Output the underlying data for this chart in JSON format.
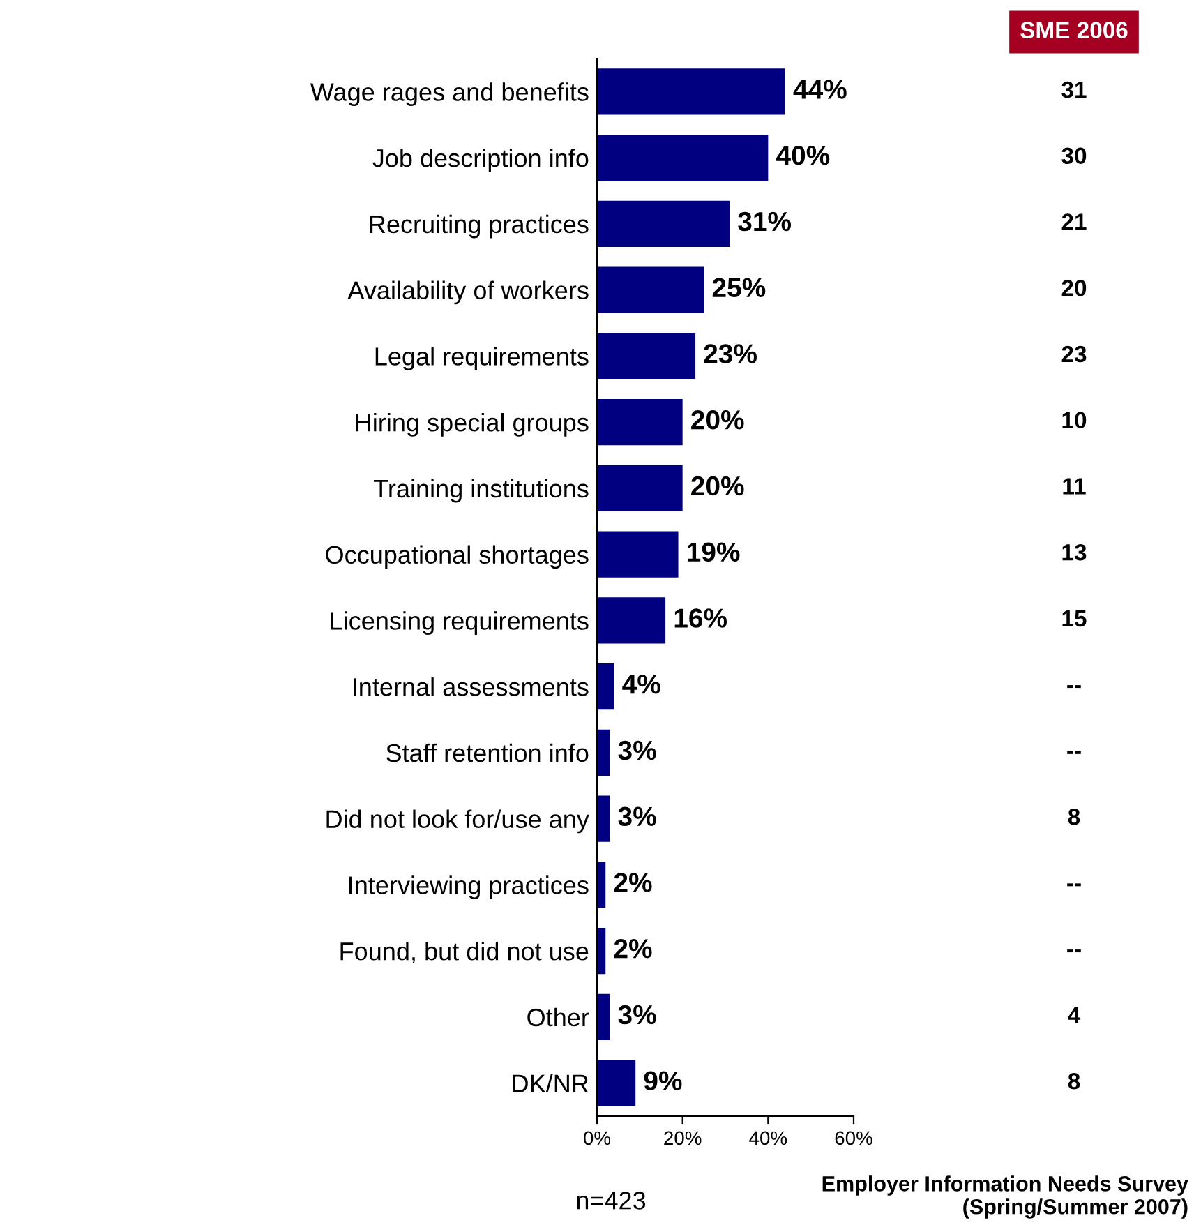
{
  "chart_data": {
    "type": "bar",
    "orientation": "horizontal",
    "categories": [
      "Wage rages and benefits",
      "Job description info",
      "Recruiting practices",
      "Availability of workers",
      "Legal requirements",
      "Hiring special groups",
      "Training institutions",
      "Occupational shortages",
      "Licensing requirements",
      "Internal assessments",
      "Staff retention info",
      "Did not look for/use any",
      "Interviewing practices",
      "Found, but did not use",
      "Other",
      "DK/NR"
    ],
    "values": [
      44,
      40,
      31,
      25,
      23,
      20,
      20,
      19,
      16,
      4,
      3,
      3,
      2,
      2,
      3,
      9
    ],
    "color": "#000080",
    "value_labels": [
      "44%",
      "40%",
      "31%",
      "25%",
      "23%",
      "20%",
      "20%",
      "19%",
      "16%",
      "4%",
      "3%",
      "3%",
      "2%",
      "2%",
      "3%",
      "9%"
    ],
    "xlim": [
      0,
      60
    ],
    "xticks": [
      {
        "value": 0,
        "label": "0%"
      },
      {
        "value": 20,
        "label": "20%"
      },
      {
        "value": 40,
        "label": "40%"
      },
      {
        "value": 60,
        "label": "60%"
      }
    ],
    "grid": false,
    "legend": false,
    "annotations": [
      "SME 2006",
      "n=423",
      "Employer Information Needs Survey\n(Spring/Summer 2007)",
      "31",
      "30",
      "21",
      "20",
      "23",
      "10",
      "11",
      "13",
      "15",
      "--",
      "--",
      "8",
      "--",
      "--",
      "4",
      "8"
    ]
  }
}
